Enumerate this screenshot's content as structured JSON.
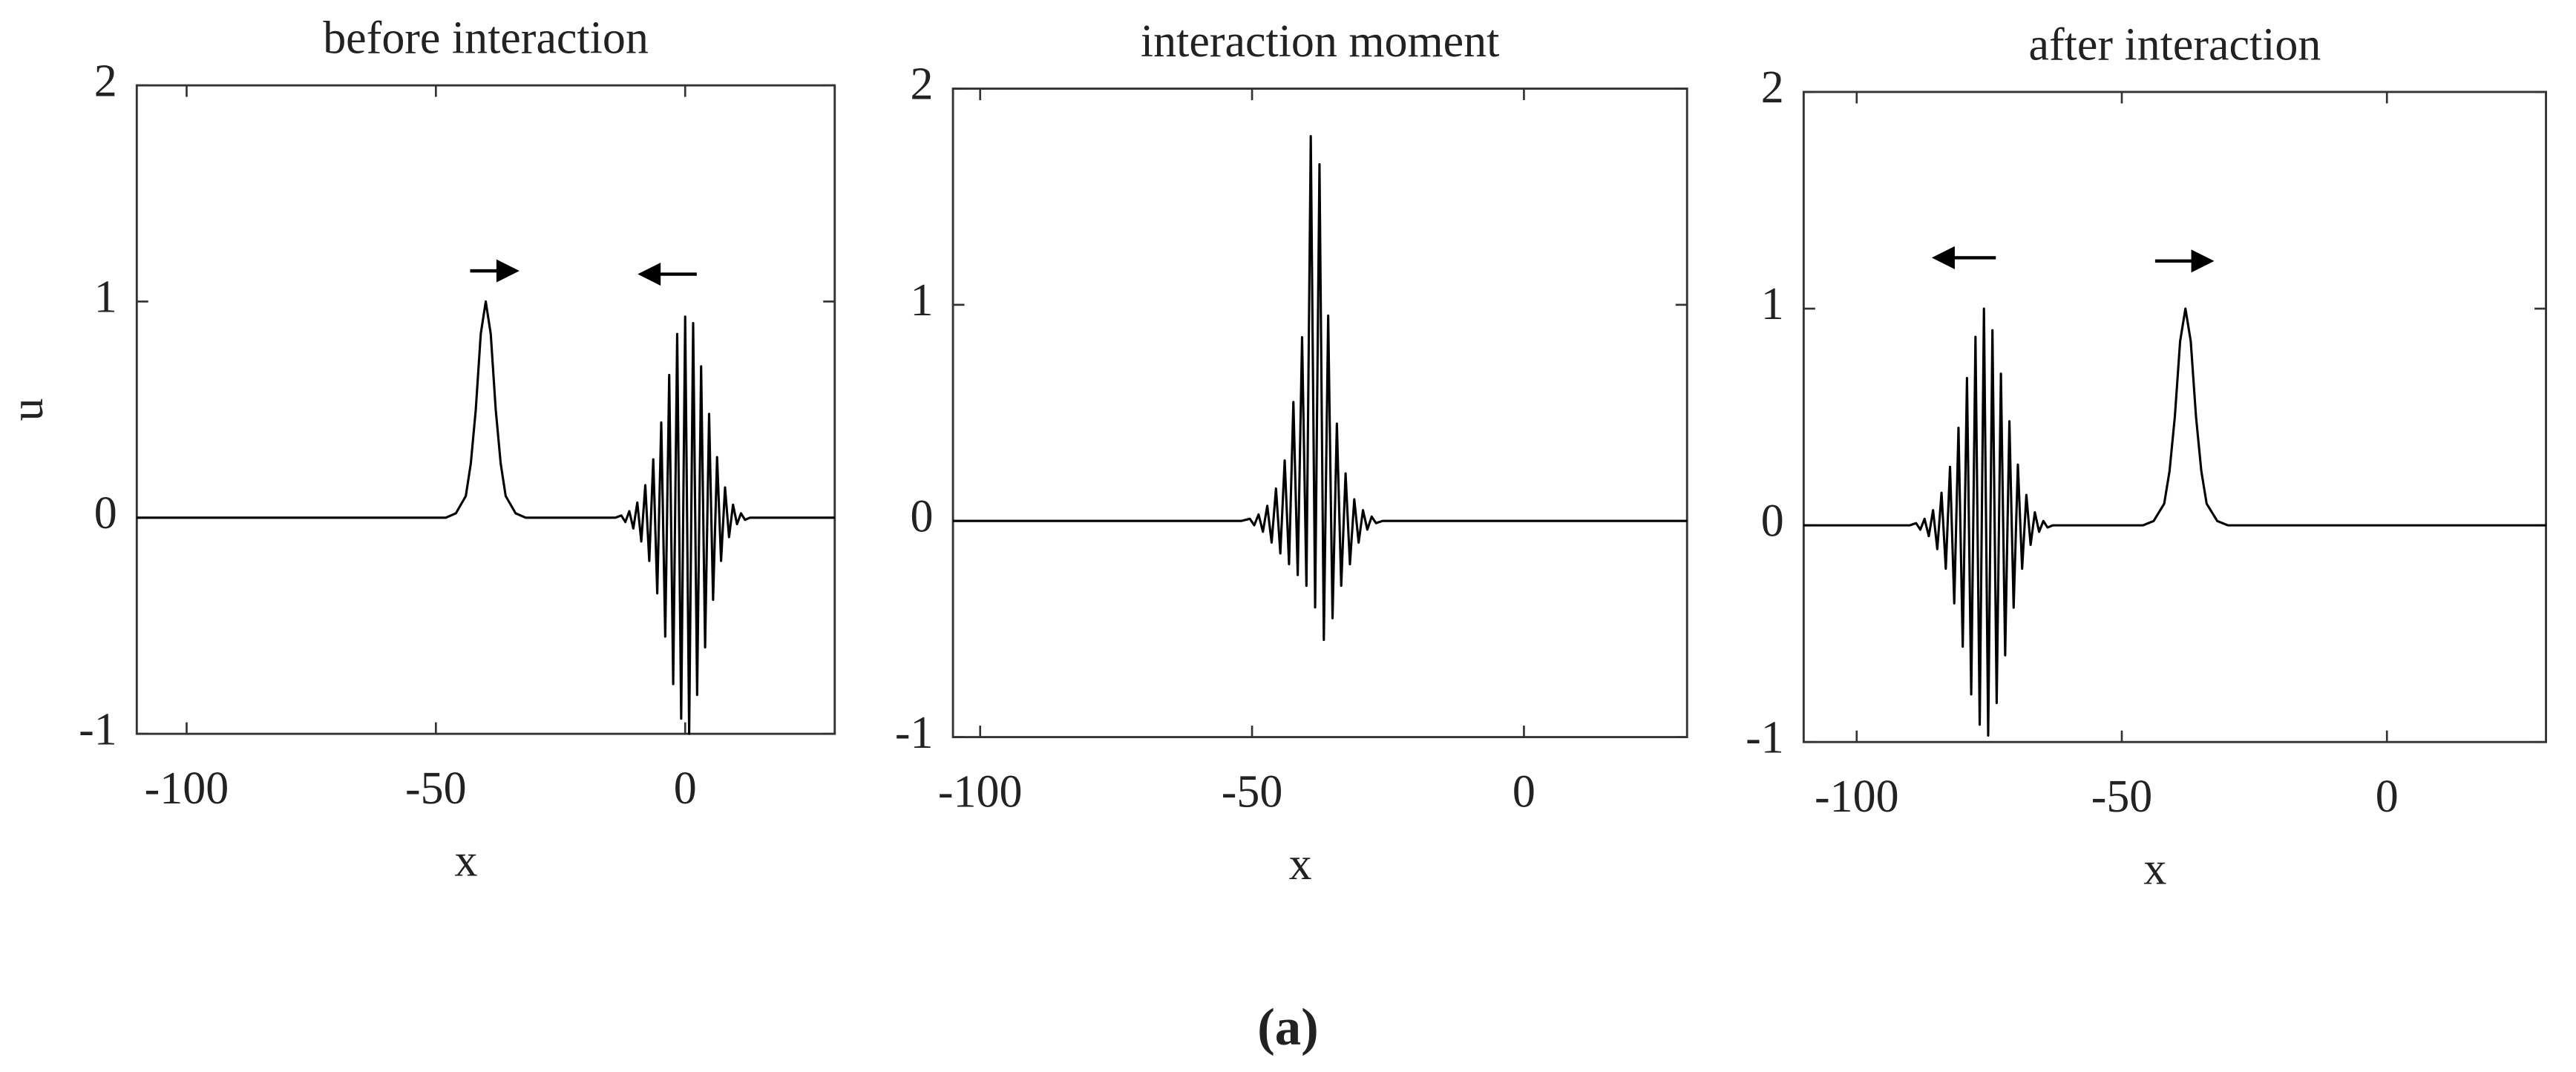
{
  "chart_data": [
    {
      "type": "line",
      "title": "before interaction",
      "xlabel": "x",
      "ylabel": "u",
      "color": "#000000",
      "xlim": [
        -110,
        30
      ],
      "ylim": [
        -1,
        2
      ],
      "xticks": [
        -100,
        -50,
        0
      ],
      "yticks": [
        -1,
        0,
        1,
        2
      ],
      "x": [
        -110,
        -48,
        -46,
        -44,
        -43,
        -42,
        -41,
        -40,
        -39,
        -38,
        -37,
        -36,
        -34,
        -32,
        -14,
        -12.8,
        -12,
        -11.2,
        -10.4,
        -9.6,
        -8.8,
        -8,
        -7.2,
        -6.4,
        -5.6,
        -4.8,
        -4,
        -3.2,
        -2.4,
        -1.6,
        -0.8,
        0,
        0.8,
        1.6,
        2.4,
        3.2,
        4,
        4.8,
        5.6,
        6.4,
        7.2,
        8,
        8.8,
        9.6,
        10.4,
        11.2,
        12,
        13,
        30
      ],
      "values": [
        0,
        0,
        0.02,
        0.1,
        0.25,
        0.5,
        0.85,
        1,
        0.85,
        0.5,
        0.25,
        0.1,
        0.02,
        0,
        0,
        0.01,
        -0.02,
        0.03,
        -0.05,
        0.07,
        -0.11,
        0.15,
        -0.2,
        0.27,
        -0.35,
        0.44,
        -0.55,
        0.66,
        -0.77,
        0.85,
        -0.93,
        0.93,
        -1,
        0.9,
        -0.82,
        0.7,
        -0.6,
        0.48,
        -0.38,
        0.28,
        -0.2,
        0.14,
        -0.09,
        0.06,
        -0.03,
        0.02,
        -0.01,
        0,
        0
      ]
    },
    {
      "type": "line",
      "title": "interaction moment",
      "xlabel": "x",
      "color": "#000000",
      "xlim": [
        -105,
        30
      ],
      "ylim": [
        -1,
        2
      ],
      "xticks": [
        -100,
        -50,
        0
      ],
      "yticks": [
        -1,
        0,
        1,
        2
      ],
      "x": [
        -105,
        -52,
        -50.4,
        -49.6,
        -48.8,
        -48,
        -47.2,
        -46.4,
        -45.6,
        -44.8,
        -44,
        -43.2,
        -42.4,
        -41.6,
        -40.8,
        -40,
        -39.2,
        -38.4,
        -37.6,
        -36.8,
        -36,
        -35.2,
        -34.4,
        -33.6,
        -32.8,
        -32,
        -31.2,
        -30.4,
        -29.6,
        -28.8,
        -28,
        -27.2,
        -26,
        30
      ],
      "values": [
        0,
        0,
        0.01,
        -0.02,
        0.03,
        -0.05,
        0.07,
        -0.1,
        0.15,
        -0.15,
        0.28,
        -0.2,
        0.55,
        -0.25,
        0.85,
        -0.3,
        1.78,
        -0.4,
        1.65,
        -0.55,
        0.95,
        -0.45,
        0.45,
        -0.3,
        0.22,
        -0.2,
        0.1,
        -0.1,
        0.05,
        -0.04,
        0.02,
        -0.01,
        0,
        0
      ]
    },
    {
      "type": "line",
      "title": "after interaction",
      "xlabel": "x",
      "color": "#000000",
      "xlim": [
        -110,
        30
      ],
      "ylim": [
        -1,
        2
      ],
      "xticks": [
        -100,
        -50,
        0
      ],
      "yticks": [
        -1,
        0,
        1,
        2
      ],
      "x": [
        -110,
        -90,
        -88.8,
        -88,
        -87.2,
        -86.4,
        -85.6,
        -84.8,
        -84,
        -83.2,
        -82.4,
        -81.6,
        -80.8,
        -80,
        -79.2,
        -78.4,
        -77.6,
        -76.8,
        -76,
        -75.2,
        -74.4,
        -73.6,
        -72.8,
        -72,
        -71.2,
        -70.4,
        -69.6,
        -68.8,
        -68,
        -67.2,
        -66.4,
        -65.6,
        -64.8,
        -64,
        -63,
        -46,
        -44,
        -42,
        -41,
        -40,
        -39,
        -38,
        -37,
        -36,
        -35,
        -34,
        -32,
        -30,
        30
      ],
      "values": [
        0,
        0,
        0.01,
        -0.02,
        0.03,
        -0.05,
        0.07,
        -0.11,
        0.15,
        -0.2,
        0.27,
        -0.36,
        0.45,
        -0.56,
        0.68,
        -0.78,
        0.87,
        -0.92,
        1,
        -0.97,
        0.9,
        -0.82,
        0.7,
        -0.6,
        0.48,
        -0.38,
        0.28,
        -0.2,
        0.14,
        -0.09,
        0.06,
        -0.03,
        0.02,
        -0.01,
        0,
        0,
        0.02,
        0.1,
        0.25,
        0.5,
        0.85,
        1,
        0.85,
        0.5,
        0.25,
        0.1,
        0.02,
        0,
        0
      ]
    }
  ],
  "caption": "(a)"
}
